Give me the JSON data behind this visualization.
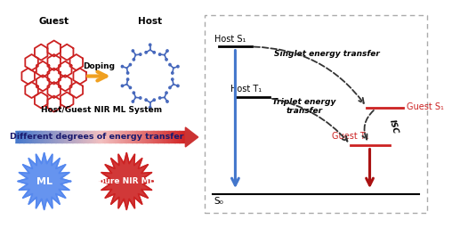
{
  "left_panel": {
    "guest_label": "Guest",
    "host_label": "Host",
    "doping_label": "Doping",
    "system_label": "Host/Guest NIR ML System",
    "energy_label": "Different degrees of energy transfer",
    "ml_label": "ML",
    "nirml_label": "pure NIR ML",
    "guest_color": "#cc2222",
    "host_color": "#4466bb",
    "doping_arrow_color": "#f0a020"
  },
  "right_panel": {
    "host_s1_label": "Host S₁",
    "host_t1_label": "Host T₁",
    "guest_s1_label": "Guest S₁",
    "guest_t1_label": "Guest T₁",
    "s0_label": "S₀",
    "singlet_label": "Singlet energy transfer",
    "triplet_label": "Triplet energy\ntransfer",
    "isc_label": "ISC",
    "host_color": "#333333",
    "guest_color": "#cc2222",
    "blue_arrow_color": "#4477cc",
    "red_arrow_color": "#aa1111"
  }
}
